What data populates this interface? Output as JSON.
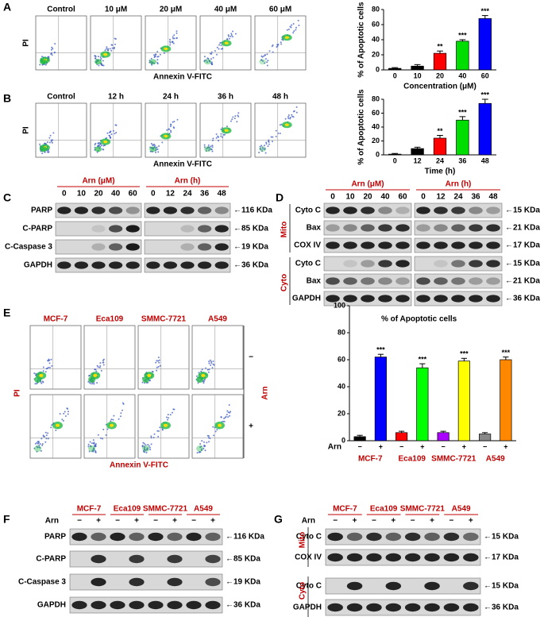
{
  "figure": {
    "A": {
      "label": "A",
      "flow_titles": [
        "Control",
        "10 μM",
        "20 μM",
        "40 μM",
        "60 μM"
      ],
      "y_label": "PI",
      "x_label": "Annexin V-FITC"
    },
    "B": {
      "label": "B",
      "flow_titles": [
        "Control",
        "12 h",
        "24 h",
        "36 h",
        "48 h"
      ],
      "y_label": "PI",
      "x_label": "Annexin V-FITC"
    },
    "C": {
      "label": "C",
      "headers": [
        "Arn (μM)",
        "Arn (h)"
      ],
      "lanes": [
        [
          "0",
          "10",
          "20",
          "40",
          "60"
        ],
        [
          "0",
          "12",
          "24",
          "36",
          "48"
        ]
      ],
      "rows": [
        "PARP",
        "C-PARP",
        "C-Caspase 3",
        "GAPDH"
      ],
      "markers": [
        "←116 KDa",
        "←85 KDa",
        "←19 KDa",
        "←36 KDa"
      ]
    },
    "D": {
      "label": "D",
      "headers": [
        "Arn (μM)",
        "Arn (h)"
      ],
      "lanes": [
        [
          "0",
          "10",
          "20",
          "40",
          "60"
        ],
        [
          "0",
          "12",
          "24",
          "36",
          "48"
        ]
      ],
      "sections": [
        "Mito",
        "Cyto"
      ],
      "rows": [
        "Cyto C",
        "Bax",
        "COX IV",
        "Cyto C",
        "Bax",
        "GAPDH"
      ],
      "markers": [
        "←15 KDa",
        "←21 KDa",
        "←17 KDa",
        "←15 KDa",
        "←21 KDa",
        "←36 KDa"
      ]
    },
    "E": {
      "label": "E",
      "flow_titles": [
        "MCF-7",
        "Eca109",
        "SMMC-7721",
        "A549"
      ],
      "y_label": "PI",
      "x_label": "Annexin V-FITC",
      "row_signs": [
        "−",
        "+"
      ],
      "side_label": "Arn"
    },
    "F": {
      "label": "F",
      "treatment": "Arn",
      "groups": [
        "MCF-7",
        "Eca109",
        "SMMC-7721",
        "A549"
      ],
      "signs": [
        "−",
        "+"
      ],
      "rows": [
        "PARP",
        "C-PARP",
        "C-Caspase 3",
        "GAPDH"
      ],
      "markers": [
        "←116 KDa",
        "←85 KDa",
        "←19 KDa",
        "←36 KDa"
      ]
    },
    "G": {
      "label": "G",
      "treatment": "Arn",
      "groups": [
        "MCF-7",
        "Eca109",
        "SMMC-7721",
        "A549"
      ],
      "signs": [
        "−",
        "+"
      ],
      "sections": [
        "Mito",
        "Cyto"
      ],
      "rows": [
        "Cyto C",
        "COX IV",
        "Cyto C",
        "GAPDH"
      ],
      "markers": [
        "←15 KDa",
        "←17 KDa",
        "←15 KDa",
        "←36 KDa"
      ]
    }
  },
  "chart_data": [
    {
      "type": "bar",
      "ylabel": "% of Apoptotic cells",
      "xlabel": "Concentration (μM)",
      "categories": [
        "0",
        "10",
        "20",
        "40",
        "60"
      ],
      "values": [
        2,
        5,
        22,
        38,
        68
      ],
      "errors": [
        1,
        2,
        3,
        2,
        4
      ],
      "significance": [
        null,
        null,
        "**",
        "***",
        "***"
      ],
      "colors": [
        "#000000",
        "#000000",
        "#ff0000",
        "#00dd00",
        "#0000ff"
      ],
      "ylim": [
        0,
        80
      ],
      "yticks": [
        0,
        20,
        40,
        60,
        80
      ]
    },
    {
      "type": "bar",
      "ylabel": "% of Apoptotic cells",
      "xlabel": "Time (h)",
      "categories": [
        "0",
        "12",
        "24",
        "36",
        "48"
      ],
      "values": [
        1,
        9,
        24,
        50,
        74
      ],
      "errors": [
        1,
        2,
        4,
        5,
        6
      ],
      "significance": [
        null,
        null,
        "**",
        "***",
        "***"
      ],
      "colors": [
        "#000000",
        "#000000",
        "#ff0000",
        "#00dd00",
        "#0000ff"
      ],
      "ylim": [
        0,
        80
      ],
      "yticks": [
        0,
        20,
        40,
        60,
        80
      ]
    },
    {
      "type": "grouped-bar",
      "ylabel": "% of Apoptotic cells",
      "category_label": "Arn",
      "groups": [
        "MCF-7",
        "Eca109",
        "SMMC-7721",
        "A549"
      ],
      "categories": [
        "−",
        "+",
        "−",
        "+",
        "−",
        "+",
        "−",
        "+"
      ],
      "values": [
        3,
        62,
        6,
        54,
        6,
        59,
        5,
        60
      ],
      "errors": [
        1,
        2,
        1,
        3,
        1,
        2,
        1,
        2
      ],
      "significance": [
        null,
        "***",
        null,
        "***",
        null,
        "***",
        null,
        "***"
      ],
      "colors": [
        "#000000",
        "#0000ff",
        "#ff0000",
        "#00ff00",
        "#aa00ff",
        "#ffff00",
        "#888888",
        "#ff8800"
      ],
      "ylim": [
        0,
        100
      ],
      "yticks": [
        0,
        20,
        40,
        60,
        80,
        100
      ]
    }
  ]
}
